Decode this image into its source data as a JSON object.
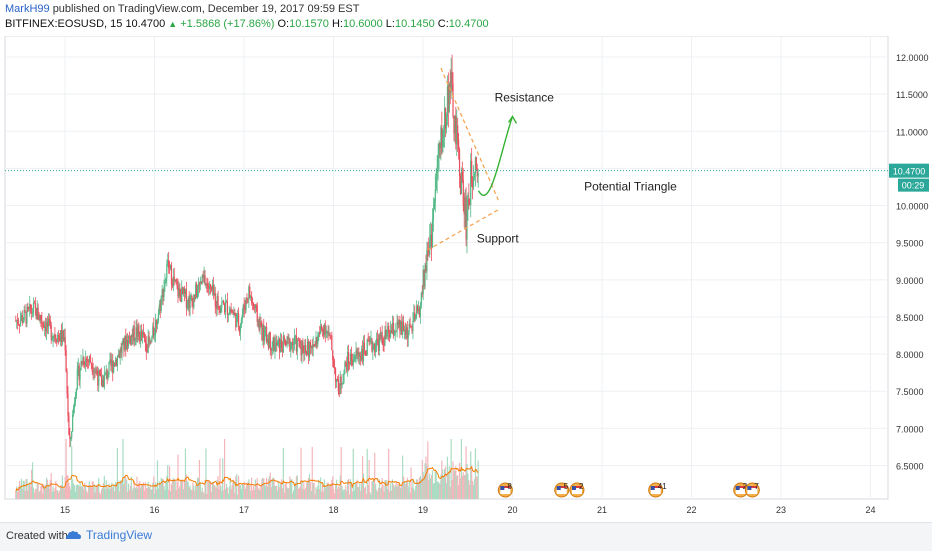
{
  "header": {
    "author": "MarkH99",
    "published": "published on TradingView.com, December 19, 2017 09:59 EST",
    "symbol": "BITFINEX:EOSUSD, 15",
    "last": "10.4700",
    "change": "+1.5868 (+17.86%)",
    "o_label": "O:",
    "o": "10.1570",
    "h_label": "H:",
    "h": "10.6000",
    "l_label": "L:",
    "l": "10.1450",
    "c_label": "C:",
    "c": "10.4700"
  },
  "footer": {
    "created": "Created with",
    "brand": "TradingView"
  },
  "colors": {
    "up": "#53b987",
    "down": "#eb4d5c",
    "accent": "#2962c9",
    "price_line": "#26a69a",
    "ma": "#f57c00",
    "trend": "#f5a04a",
    "projection": "#34b233",
    "price_badge": "#2ca89a"
  },
  "chart_data": {
    "type": "candlestick",
    "symbol": "BITFINEX:EOSUSD",
    "interval": "15",
    "x_ticks": [
      "15",
      "16",
      "17",
      "18",
      "19",
      "20",
      "21",
      "22",
      "23",
      "24"
    ],
    "y_ticks": [
      "12.0000",
      "11.5000",
      "11.0000",
      "10.5000",
      "10.0000",
      "9.5000",
      "9.0000",
      "8.5000",
      "8.0000",
      "7.5000",
      "7.0000",
      "6.5000"
    ],
    "ylim": [
      6.0,
      12.1
    ],
    "last_price": 10.47,
    "last_price_label": "10.4700",
    "countdown": "00:29",
    "price_path": [
      [
        14.45,
        8.45
      ],
      [
        14.55,
        8.5
      ],
      [
        14.65,
        8.6
      ],
      [
        14.75,
        8.45
      ],
      [
        14.85,
        8.3
      ],
      [
        15.0,
        8.2
      ],
      [
        15.05,
        6.7
      ],
      [
        15.12,
        7.6
      ],
      [
        15.2,
        7.95
      ],
      [
        15.3,
        7.9
      ],
      [
        15.4,
        7.6
      ],
      [
        15.55,
        7.9
      ],
      [
        15.7,
        8.2
      ],
      [
        15.8,
        8.3
      ],
      [
        15.95,
        8.1
      ],
      [
        16.05,
        8.6
      ],
      [
        16.15,
        9.2
      ],
      [
        16.25,
        8.85
      ],
      [
        16.4,
        8.7
      ],
      [
        16.55,
        9.0
      ],
      [
        16.7,
        8.7
      ],
      [
        16.85,
        8.6
      ],
      [
        16.95,
        8.4
      ],
      [
        17.05,
        8.85
      ],
      [
        17.2,
        8.3
      ],
      [
        17.35,
        8.1
      ],
      [
        17.55,
        8.15
      ],
      [
        17.75,
        8.05
      ],
      [
        17.9,
        8.4
      ],
      [
        17.97,
        8.15
      ],
      [
        18.05,
        7.5
      ],
      [
        18.15,
        7.9
      ],
      [
        18.35,
        8.05
      ],
      [
        18.55,
        8.2
      ],
      [
        18.7,
        8.35
      ],
      [
        18.85,
        8.3
      ],
      [
        18.97,
        8.65
      ],
      [
        19.03,
        9.2
      ],
      [
        19.1,
        9.7
      ],
      [
        19.17,
        10.6
      ],
      [
        19.25,
        11.2
      ],
      [
        19.3,
        11.7
      ],
      [
        19.36,
        11.0
      ],
      [
        19.42,
        10.4
      ],
      [
        19.48,
        9.8
      ],
      [
        19.53,
        10.3
      ],
      [
        19.58,
        10.7
      ],
      [
        19.62,
        10.47
      ]
    ],
    "annotations": [
      {
        "text": "Resistance",
        "x": 19.8,
        "y": 11.4
      },
      {
        "text": "Support",
        "x": 19.6,
        "y": 9.5
      },
      {
        "text": "Potential Triangle",
        "x": 20.8,
        "y": 10.2
      }
    ],
    "trendlines": [
      {
        "name": "resistance",
        "from": [
          19.2,
          11.85
        ],
        "to": [
          19.85,
          10.05
        ]
      },
      {
        "name": "support",
        "from": [
          19.05,
          9.4
        ],
        "to": [
          19.85,
          9.95
        ]
      }
    ],
    "projection": {
      "from": [
        19.62,
        10.2
      ],
      "to": [
        20.0,
        11.2
      ]
    },
    "event_markers": [
      {
        "x": 19.92,
        "label": "8"
      },
      {
        "x": 20.55,
        "label": "5"
      },
      {
        "x": 20.72,
        "label": "2"
      },
      {
        "x": 21.6,
        "label": "41"
      },
      {
        "x": 22.55,
        "label": "2"
      },
      {
        "x": 22.68,
        "label": "7"
      }
    ]
  }
}
